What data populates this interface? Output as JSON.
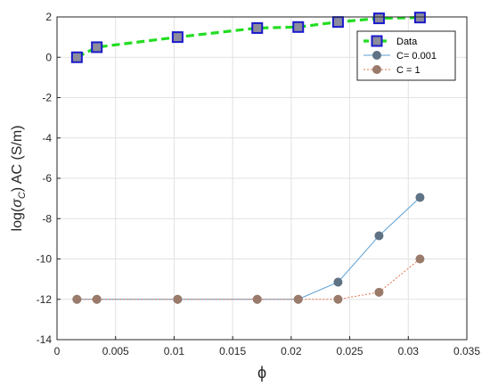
{
  "chart_data": {
    "type": "line",
    "xlabel": "ϕ",
    "ylabel_prefix": "log(",
    "ylabel_sigma": "σ",
    "ylabel_sub": "C",
    "ylabel_suffix": ") AC (S/m)",
    "xlim": [
      0,
      0.035
    ],
    "ylim": [
      -14,
      2
    ],
    "xticks": [
      0,
      0.005,
      0.01,
      0.015,
      0.02,
      0.025,
      0.03,
      0.035
    ],
    "xtick_labels": [
      "0",
      "0.005",
      "0.01",
      "0.015",
      "0.02",
      "0.025",
      "0.03",
      "0.035"
    ],
    "yticks": [
      -14,
      -12,
      -10,
      -8,
      -6,
      -4,
      -2,
      0,
      2
    ],
    "ytick_labels": [
      "-14",
      "-12",
      "-10",
      "-8",
      "-6",
      "-4",
      "-2",
      "0",
      "2"
    ],
    "grid": true,
    "legend_position": "top-right",
    "series": [
      {
        "name": "Data",
        "style": "dashed-square",
        "line_color": "#22dd22",
        "marker_fill": "#8c8c9c",
        "marker_edge": "#1a1acc",
        "x": [
          0.0017,
          0.0034,
          0.0103,
          0.0171,
          0.0206,
          0.024,
          0.0275,
          0.031
        ],
        "y": [
          0.0,
          0.5,
          1.0,
          1.45,
          1.5,
          1.75,
          1.93,
          1.97
        ]
      },
      {
        "name": "C= 0.001",
        "style": "solid-circle",
        "line_color": "#5a9fd4",
        "marker_fill": "#5f7385",
        "marker_edge": "#5f7385",
        "x": [
          0.0017,
          0.0034,
          0.0103,
          0.0171,
          0.0206,
          0.024,
          0.0275,
          0.031
        ],
        "y": [
          -12.0,
          -12.0,
          -12.0,
          -12.0,
          -12.0,
          -11.15,
          -8.85,
          -6.95
        ]
      },
      {
        "name": "C = 1",
        "style": "dotted-circle",
        "line_color": "#e0734a",
        "marker_fill": "#9a7a6a",
        "marker_edge": "#9a7a6a",
        "x": [
          0.0017,
          0.0034,
          0.0103,
          0.0171,
          0.0206,
          0.024,
          0.0275,
          0.031
        ],
        "y": [
          -12.0,
          -12.0,
          -12.0,
          -12.0,
          -12.0,
          -12.0,
          -11.65,
          -10.0
        ]
      }
    ]
  }
}
